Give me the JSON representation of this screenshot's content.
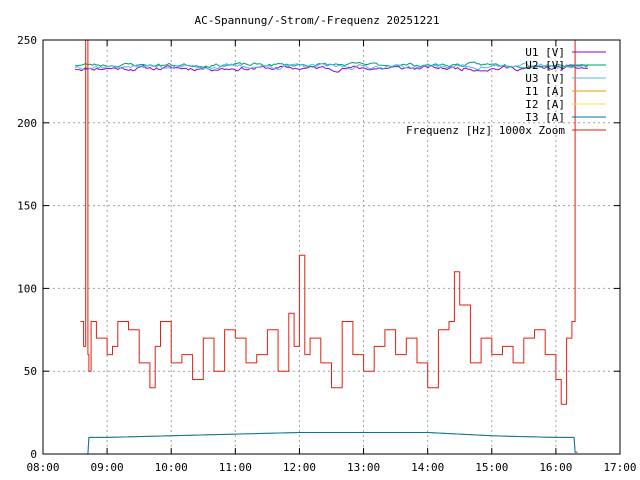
{
  "chart_data": {
    "type": "line",
    "title": "AC-Spannung/-Strom/-Frequenz 20251221",
    "xlabel": "",
    "ylabel": "",
    "xlim": [
      "08:00",
      "17:00"
    ],
    "ylim": [
      0,
      250
    ],
    "grid": true,
    "legend_position": "top-right",
    "x_ticks": [
      "08:00",
      "09:00",
      "10:00",
      "11:00",
      "12:00",
      "13:00",
      "14:00",
      "15:00",
      "16:00",
      "17:00"
    ],
    "y_ticks": [
      "0",
      "50",
      "100",
      "150",
      "200",
      "250"
    ],
    "series": [
      {
        "name": "U1 [V]",
        "color": "#9400d3",
        "style": "noise",
        "base": 233,
        "amp": 3,
        "seed": 11,
        "x": [
          "08:30",
          "16:30"
        ],
        "values": [
          233,
          233
        ]
      },
      {
        "name": "U2 [V]",
        "color": "#009e73",
        "style": "noise",
        "base": 235,
        "amp": 2.5,
        "seed": 23,
        "x": [
          "08:30",
          "16:30"
        ],
        "values": [
          235,
          235
        ]
      },
      {
        "name": "U3 [V]",
        "color": "#56b4e9",
        "style": "noise",
        "base": 234,
        "amp": 3,
        "seed": 37,
        "x": [
          "08:30",
          "16:30"
        ],
        "values": [
          234,
          234
        ]
      },
      {
        "name": "I1 [A]",
        "color": "#e69f00",
        "style": "smooth",
        "x": [
          "08:40",
          "08:42",
          "08:43",
          "09:00",
          "10:00",
          "11:00",
          "12:00",
          "13:00",
          "14:00",
          "15:00",
          "16:00",
          "16:17",
          "16:18",
          "16:20"
        ],
        "values": [
          0,
          0,
          10,
          10,
          11,
          12,
          13,
          13,
          13,
          11,
          10,
          10,
          1,
          1
        ]
      },
      {
        "name": "I2 [A]",
        "color": "#f0e442",
        "style": "smooth",
        "x": [
          "08:40",
          "08:42",
          "08:43",
          "09:00",
          "10:00",
          "11:00",
          "12:00",
          "13:00",
          "14:00",
          "15:00",
          "16:00",
          "16:17",
          "16:18",
          "16:20"
        ],
        "values": [
          0,
          0,
          10,
          10,
          11,
          12,
          13,
          13,
          13,
          11,
          10,
          10,
          1,
          1
        ]
      },
      {
        "name": "I3 [A]",
        "color": "#0072b2",
        "style": "smooth",
        "x": [
          "08:40",
          "08:42",
          "08:43",
          "09:00",
          "10:00",
          "11:00",
          "12:00",
          "13:00",
          "14:00",
          "15:00",
          "16:00",
          "16:17",
          "16:18",
          "16:20"
        ],
        "values": [
          0,
          0,
          10,
          10,
          11,
          12,
          13,
          13,
          13,
          11,
          10,
          10,
          1,
          1
        ]
      },
      {
        "name": "Frequenz [Hz] 1000x Zoom",
        "color": "#e51e10",
        "style": "step",
        "x": [
          "08:35",
          "08:38",
          "08:40",
          "08:42",
          "08:43",
          "08:45",
          "08:50",
          "09:00",
          "09:05",
          "09:10",
          "09:20",
          "09:30",
          "09:40",
          "09:45",
          "09:50",
          "10:00",
          "10:10",
          "10:20",
          "10:30",
          "10:40",
          "10:50",
          "11:00",
          "11:10",
          "11:20",
          "11:30",
          "11:40",
          "11:50",
          "11:55",
          "12:00",
          "12:05",
          "12:10",
          "12:20",
          "12:30",
          "12:40",
          "12:50",
          "13:00",
          "13:10",
          "13:20",
          "13:30",
          "13:40",
          "13:50",
          "14:00",
          "14:10",
          "14:20",
          "14:25",
          "14:30",
          "14:40",
          "14:50",
          "15:00",
          "15:10",
          "15:20",
          "15:30",
          "15:40",
          "15:50",
          "16:00",
          "16:05",
          "16:10",
          "16:15",
          "16:18"
        ],
        "values": [
          80,
          65,
          250,
          60,
          50,
          80,
          70,
          60,
          65,
          80,
          75,
          55,
          40,
          65,
          80,
          55,
          60,
          45,
          70,
          50,
          75,
          70,
          55,
          60,
          75,
          50,
          85,
          65,
          120,
          60,
          70,
          55,
          40,
          80,
          60,
          50,
          65,
          75,
          60,
          70,
          55,
          40,
          75,
          80,
          110,
          90,
          55,
          70,
          60,
          65,
          55,
          70,
          75,
          60,
          45,
          30,
          70,
          80,
          250
        ]
      }
    ]
  }
}
